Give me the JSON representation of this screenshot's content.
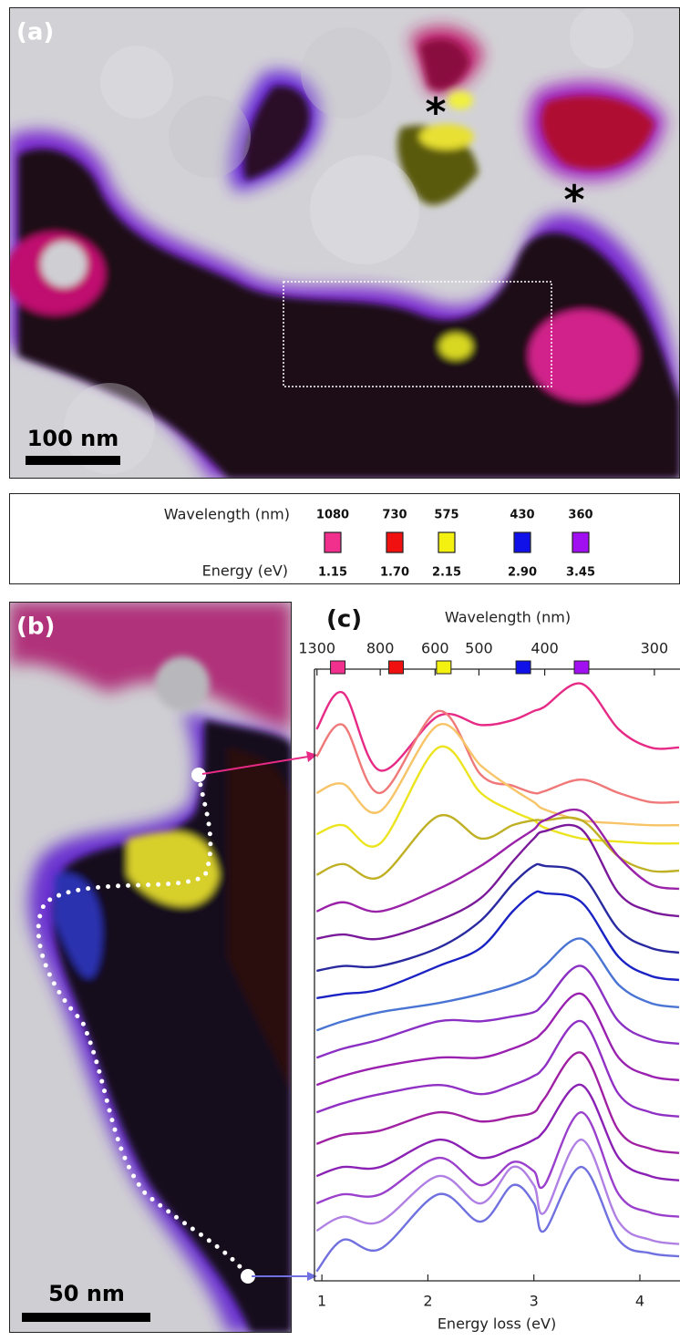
{
  "panel_a": {
    "label": "(a)",
    "scale_bar": "100 nm",
    "markers": [
      "*",
      "*"
    ]
  },
  "legend": {
    "wavelength_label": "Wavelength (nm)",
    "energy_label": "Energy  (eV)",
    "items": [
      {
        "wavelength": 1080,
        "energy": 1.15,
        "energy_label": "1.15",
        "color": "#f0308c"
      },
      {
        "wavelength": 730,
        "energy": 1.7,
        "energy_label": "1.70",
        "color": "#f01010"
      },
      {
        "wavelength": 575,
        "energy": 2.15,
        "energy_label": "2.15",
        "color": "#f4f010"
      },
      {
        "wavelength": 430,
        "energy": 2.9,
        "energy_label": "2.90",
        "color": "#1010e8"
      },
      {
        "wavelength": 360,
        "energy": 3.45,
        "energy_label": "3.45",
        "color": "#a010f0"
      }
    ]
  },
  "panel_b": {
    "label": "(b)",
    "scale_bar": "50 nm"
  },
  "chart_data": {
    "type": "line",
    "label": "(c)",
    "xlabel": "Energy loss (eV)",
    "x2label": "Wavelength (nm)",
    "x": [
      0.95,
      1.2,
      1.55,
      2.1,
      2.5,
      2.8,
      3.0,
      3.1,
      3.45,
      3.8,
      4.1,
      4.37
    ],
    "xlim": [
      0.93,
      4.37
    ],
    "xticks": [
      1,
      2,
      3,
      4
    ],
    "x2lim": [
      1333,
      284
    ],
    "x2scale": "reciprocal",
    "x2ticks": [
      1300,
      800,
      600,
      500,
      400,
      300
    ],
    "ylim": [
      0,
      100
    ],
    "series": [
      {
        "color": "#e62a86",
        "values": [
          90.1,
          96.1,
          83.3,
          92.3,
          90.8,
          91.6,
          93.1,
          93.8,
          97.6,
          90.1,
          87.1,
          87.1
        ]
      },
      {
        "color": "#f07878",
        "values": [
          85.6,
          90.8,
          79.6,
          93.1,
          82.6,
          80.8,
          79.6,
          79.9,
          81.8,
          79.6,
          78.1,
          78.1
        ]
      },
      {
        "color": "#f7c468",
        "values": [
          79.6,
          81.1,
          76.6,
          90.8,
          84.1,
          80.3,
          78.1,
          76.9,
          75.1,
          74.6,
          74.3,
          74.3
        ]
      },
      {
        "color": "#ece41e",
        "values": [
          72.8,
          74.3,
          71.3,
          87.1,
          79.6,
          76.6,
          75.1,
          73.9,
          72.1,
          71.6,
          71.3,
          71.3
        ]
      },
      {
        "color": "#bfb024",
        "values": [
          66.1,
          67.9,
          65.8,
          75.8,
          72.1,
          74.3,
          75.1,
          75.1,
          75.1,
          69.1,
          66.8,
          66.8
        ]
      },
      {
        "color": "#9a22a8",
        "values": [
          60.1,
          61.6,
          60.1,
          63.8,
          67.6,
          71.3,
          73.6,
          75.1,
          76.6,
          69.1,
          64.6,
          63.8
        ]
      },
      {
        "color": "#7a1a9a",
        "values": [
          55.6,
          56.3,
          55.6,
          58.6,
          62.3,
          68.3,
          72.1,
          73.3,
          73.6,
          63.1,
          60.1,
          59.3
        ]
      },
      {
        "color": "#2a2aa0",
        "values": [
          50.3,
          51.1,
          51.1,
          54.1,
          58.6,
          64.6,
          67.6,
          67.6,
          66.1,
          57.1,
          54.1,
          53.3
        ]
      },
      {
        "color": "#1a22c4",
        "values": [
          45.8,
          46.5,
          47.3,
          51.1,
          54.1,
          60.1,
          63.1,
          63.1,
          61.6,
          52.6,
          49.5,
          48.8
        ]
      },
      {
        "color": "#4a74d4",
        "values": [
          40.5,
          42.0,
          43.5,
          45.0,
          46.5,
          48.0,
          49.5,
          51.1,
          55.6,
          48.0,
          45.0,
          44.3
        ]
      },
      {
        "color": "#8a30c4",
        "values": [
          36.0,
          37.5,
          39.0,
          42.0,
          42.0,
          42.8,
          43.5,
          45.0,
          51.1,
          42.0,
          39.0,
          38.3
        ]
      },
      {
        "color": "#9a20b0",
        "values": [
          31.5,
          33.0,
          34.5,
          36.0,
          36.0,
          37.5,
          39.0,
          40.5,
          46.5,
          36.0,
          33.0,
          32.3
        ]
      },
      {
        "color": "#9030c4",
        "values": [
          27.0,
          28.5,
          30.0,
          31.5,
          30.0,
          31.5,
          33.0,
          34.5,
          42.0,
          30.0,
          27.0,
          26.3
        ]
      },
      {
        "color": "#a020a4",
        "values": [
          21.8,
          23.3,
          24.0,
          27.0,
          25.5,
          26.3,
          27.0,
          29.3,
          36.8,
          24.0,
          21.0,
          20.3
        ]
      },
      {
        "color": "#8a20b4",
        "values": [
          16.5,
          18.0,
          18.0,
          22.5,
          19.5,
          21.0,
          22.5,
          24.0,
          31.5,
          19.5,
          16.5,
          15.8
        ]
      },
      {
        "color": "#9a40cc",
        "values": [
          12.0,
          13.5,
          13.5,
          19.5,
          15.0,
          18.8,
          17.3,
          15.0,
          27.0,
          13.5,
          10.5,
          9.8
        ]
      },
      {
        "color": "#b080e4",
        "values": [
          7.5,
          9.8,
          9.0,
          16.5,
          12.0,
          18.0,
          15.0,
          10.5,
          22.5,
          9.0,
          6.0,
          5.3
        ]
      },
      {
        "color": "#7070e0",
        "values": [
          0.8,
          6.0,
          4.5,
          13.5,
          9.0,
          15.0,
          12.0,
          7.5,
          18.0,
          6.0,
          3.8,
          3.3
        ]
      }
    ]
  }
}
